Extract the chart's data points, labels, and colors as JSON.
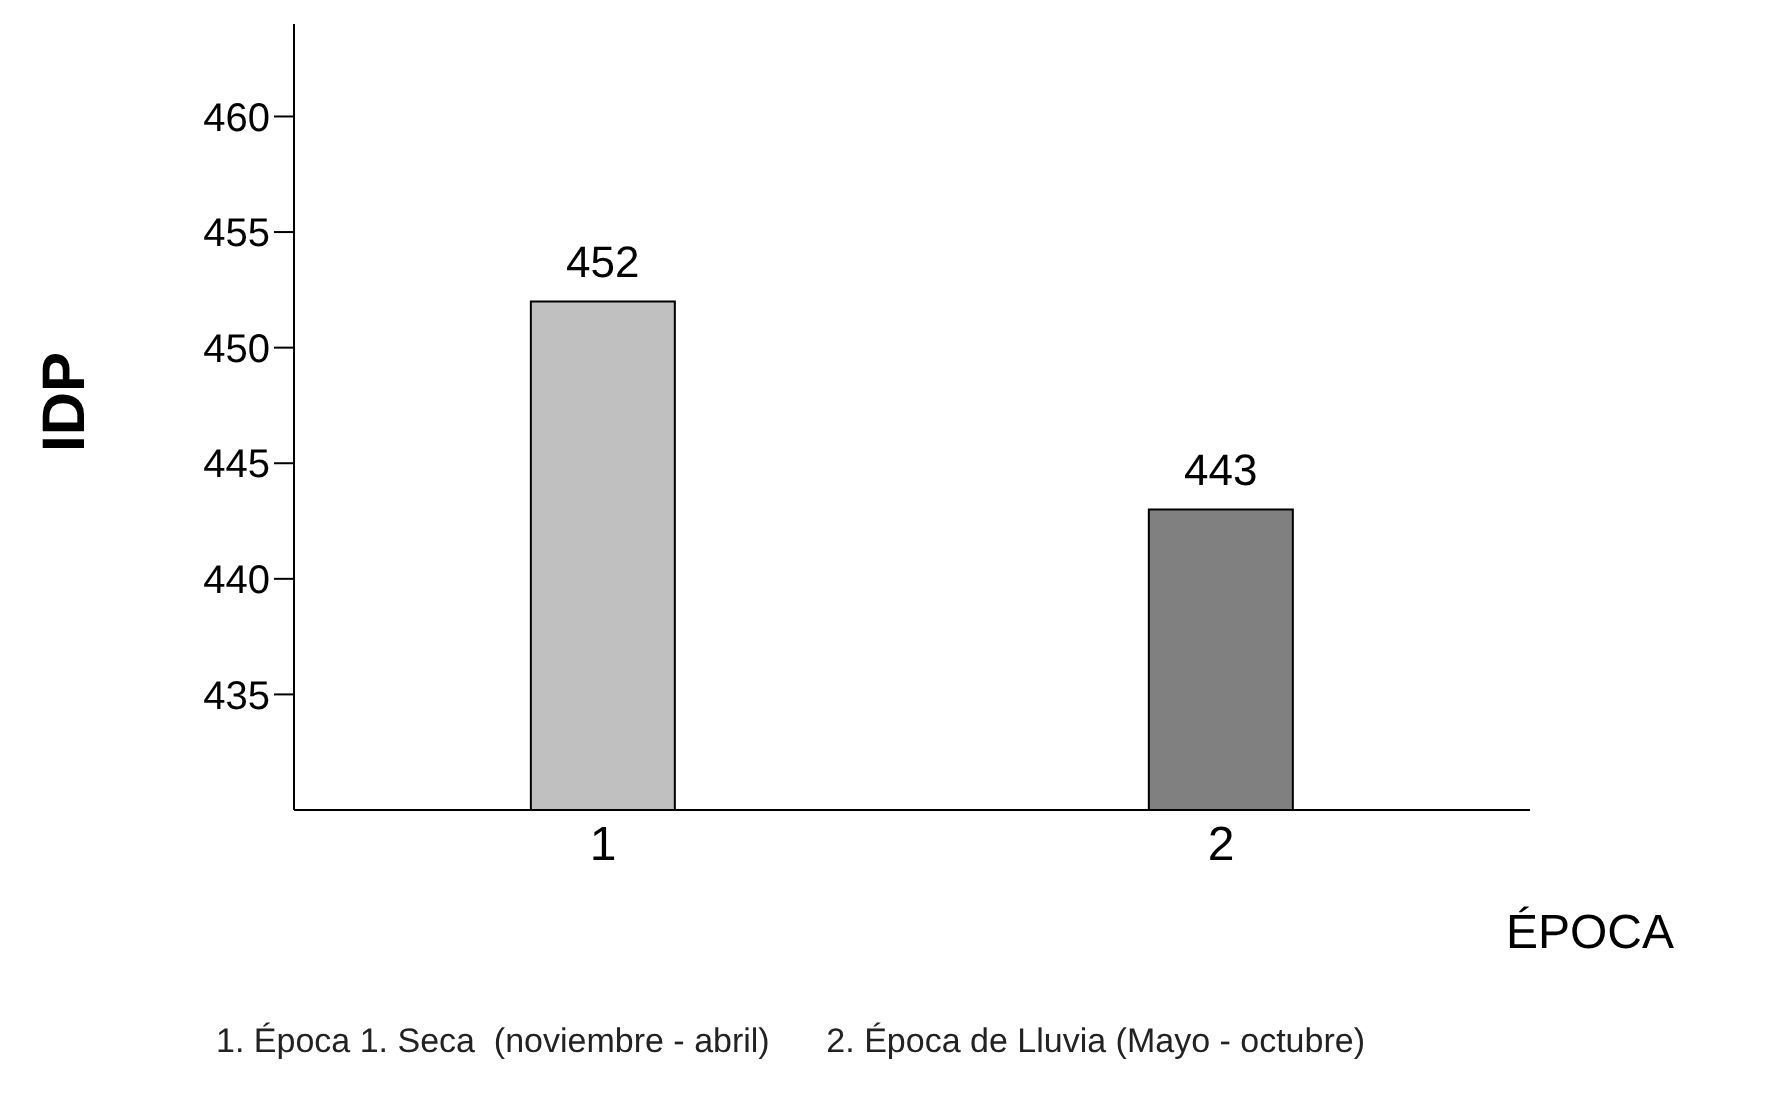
{
  "chart_data": {
    "type": "bar",
    "categories": [
      "1",
      "2"
    ],
    "values": [
      452,
      443
    ],
    "colors": [
      "#c0c0c0",
      "#808080"
    ],
    "data_labels": true,
    "ylim": [
      430,
      464
    ],
    "yticks": [
      435,
      440,
      445,
      450,
      455,
      460
    ],
    "ylabel": "IDP",
    "xlabel": "ÉPOCA",
    "annotations": [
      "1. Época 1. Seca  (noviembre - abril)      2. Época de Lluvia (Mayo - octubre)"
    ],
    "grid": false,
    "legend": false
  }
}
